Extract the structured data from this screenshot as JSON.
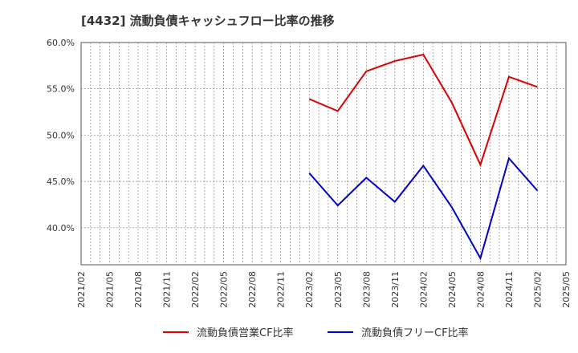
{
  "chart_data": {
    "type": "line",
    "title": "[4432]  流動負債キャッシュフロー比率の推移",
    "xlabel": "",
    "ylabel": "",
    "ylim": [
      36.0,
      60.0
    ],
    "yticks": [
      40.0,
      45.0,
      50.0,
      55.0,
      60.0
    ],
    "ytick_labels": [
      "40.0%",
      "45.0%",
      "50.0%",
      "55.0%",
      "60.0%"
    ],
    "x_tick_labels": [
      "2021/02",
      "2021/05",
      "2021/08",
      "2021/11",
      "2022/02",
      "2022/05",
      "2022/08",
      "2022/11",
      "2023/02",
      "2023/05",
      "2023/08",
      "2023/11",
      "2024/02",
      "2024/05",
      "2024/08",
      "2024/11",
      "2025/02",
      "2025/05"
    ],
    "grid": true,
    "legend_position": "bottom",
    "series": [
      {
        "name": "流動負債営業CF比率",
        "color": "#dd0000",
        "x": [
          "2023/02",
          "2023/05",
          "2023/08",
          "2023/11",
          "2024/02",
          "2024/05",
          "2024/08",
          "2024/11",
          "2025/02"
        ],
        "values": [
          53.9,
          52.6,
          56.9,
          58.0,
          58.7,
          53.5,
          46.8,
          56.3,
          55.2
        ]
      },
      {
        "name": "流動負債フリーCF比率",
        "color": "#0000cc",
        "x": [
          "2023/02",
          "2023/05",
          "2023/08",
          "2023/11",
          "2024/02",
          "2024/05",
          "2024/08",
          "2024/11",
          "2025/02"
        ],
        "values": [
          45.9,
          42.4,
          45.4,
          42.8,
          46.7,
          42.2,
          36.7,
          47.5,
          44.0
        ]
      }
    ]
  }
}
